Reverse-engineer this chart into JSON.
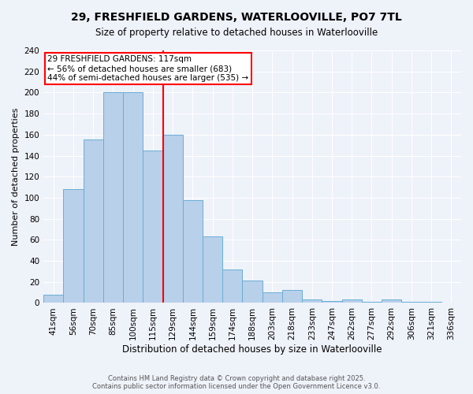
{
  "title": "29, FRESHFIELD GARDENS, WATERLOOVILLE, PO7 7TL",
  "subtitle": "Size of property relative to detached houses in Waterlooville",
  "xlabel": "Distribution of detached houses by size in Waterlooville",
  "ylabel": "Number of detached properties",
  "categories": [
    "41sqm",
    "56sqm",
    "70sqm",
    "85sqm",
    "100sqm",
    "115sqm",
    "129sqm",
    "144sqm",
    "159sqm",
    "174sqm",
    "188sqm",
    "203sqm",
    "218sqm",
    "233sqm",
    "247sqm",
    "262sqm",
    "277sqm",
    "292sqm",
    "306sqm",
    "321sqm",
    "336sqm"
  ],
  "values": [
    8,
    108,
    155,
    200,
    200,
    145,
    160,
    98,
    63,
    32,
    21,
    10,
    12,
    3,
    2,
    3,
    1,
    3,
    1,
    1,
    0
  ],
  "bar_color": "#b8d0ea",
  "bar_edge_color": "#6aaed6",
  "vline_x": 5.5,
  "vline_color": "red",
  "annotation_text": "29 FRESHFIELD GARDENS: 117sqm\n← 56% of detached houses are smaller (683)\n44% of semi-detached houses are larger (535) →",
  "annotation_box_color": "white",
  "annotation_box_edge_color": "red",
  "ylim": [
    0,
    240
  ],
  "yticks": [
    0,
    20,
    40,
    60,
    80,
    100,
    120,
    140,
    160,
    180,
    200,
    220,
    240
  ],
  "footer": "Contains HM Land Registry data © Crown copyright and database right 2025.\nContains public sector information licensed under the Open Government Licence v3.0.",
  "bg_color": "#eef2f9",
  "grid_color": "white",
  "title_fontsize": 10,
  "subtitle_fontsize": 8.5,
  "ylabel_fontsize": 8,
  "xlabel_fontsize": 8.5,
  "tick_fontsize": 7.5,
  "footer_fontsize": 6.0
}
